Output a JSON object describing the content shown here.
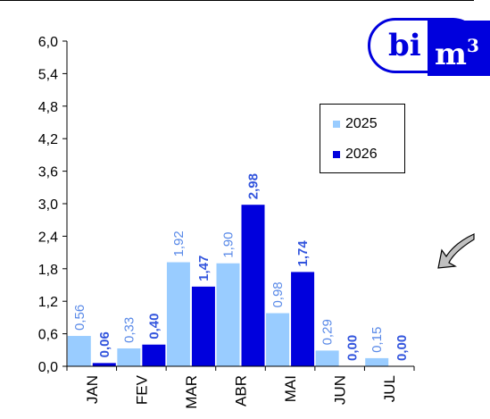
{
  "chart_data": {
    "type": "bar",
    "categories": [
      "JAN",
      "FEV",
      "MAR",
      "ABR",
      "MAI",
      "JUN",
      "JUL"
    ],
    "series": [
      {
        "name": "2025",
        "color": "#99ccff",
        "values": [
          0.56,
          0.33,
          1.92,
          1.9,
          0.98,
          0.29,
          0.15
        ],
        "labels": [
          "0,56",
          "0,33",
          "1,92",
          "1,90",
          "0,98",
          "0,29",
          "0,15"
        ]
      },
      {
        "name": "2026",
        "color": "#0000dd",
        "values": [
          0.06,
          0.4,
          1.47,
          2.98,
          1.74,
          0.0,
          0.0
        ],
        "labels": [
          "0,06",
          "0,40",
          "1,47",
          "2,98",
          "1,74",
          "0,00",
          "0,00"
        ]
      }
    ],
    "ylim": [
      0,
      6
    ],
    "yticks": [
      "0,0",
      "0,6",
      "1,2",
      "1,8",
      "2,4",
      "3,0",
      "3,6",
      "4,2",
      "4,8",
      "5,4",
      "6,0"
    ],
    "grid": false,
    "legend_position": "top-right"
  },
  "logo": {
    "left_text": "bi",
    "right_text": "m",
    "right_sup": "3"
  },
  "colors": {
    "series_2025": "#99ccff",
    "series_2026": "#0000dd",
    "label_2025": "#5a8ae8",
    "label_2026": "#3355dd",
    "arrow_fill": "#c0c0c0"
  }
}
